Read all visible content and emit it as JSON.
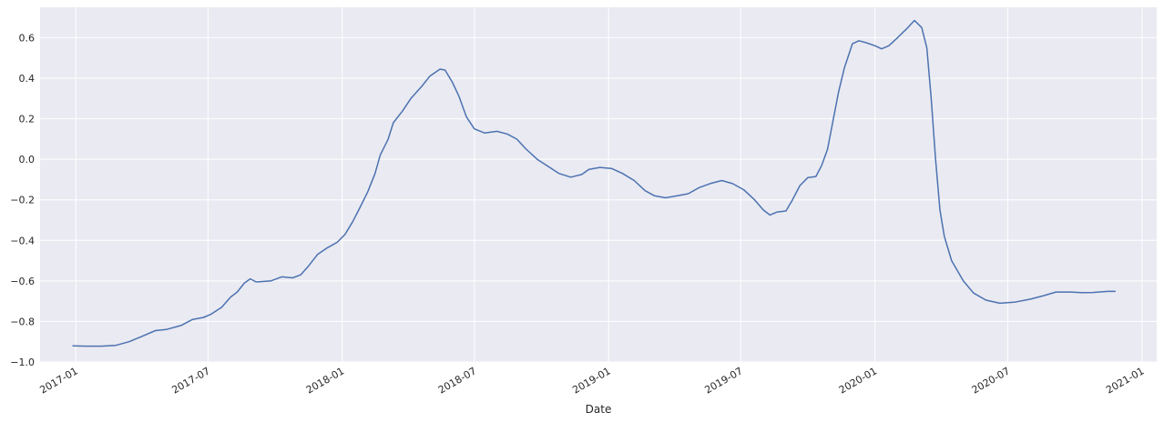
{
  "chart_data": {
    "type": "line",
    "title": "",
    "xlabel": "Date",
    "ylabel": "",
    "xlim": [
      "2016-11-13",
      "2021-01-21"
    ],
    "ylim": [
      -1.0,
      0.75
    ],
    "grid": true,
    "legend": "none",
    "background_color": "#eaeaf2",
    "grid_color": "#ffffff",
    "line_color": "#4c72b0",
    "y_ticks": [
      -1.0,
      -0.8,
      -0.6,
      -0.4,
      -0.2,
      0.0,
      0.2,
      0.4,
      0.6
    ],
    "y_tick_labels": [
      "−1.0",
      "−0.8",
      "−0.6",
      "−0.4",
      "−0.2",
      "0.0",
      "0.2",
      "0.4",
      "0.6"
    ],
    "x_ticks": [
      "2017-01-01",
      "2017-07-01",
      "2018-01-01",
      "2018-07-01",
      "2019-01-01",
      "2019-07-01",
      "2020-01-01",
      "2020-07-01",
      "2021-01-01"
    ],
    "x_tick_labels": [
      "2017-01",
      "2017-07",
      "2018-01",
      "2018-07",
      "2019-01",
      "2019-07",
      "2020-01",
      "2020-07",
      "2021-01"
    ],
    "series": [
      {
        "points": [
          [
            "2016-12-28",
            -0.92
          ],
          [
            "2017-01-15",
            -0.922
          ],
          [
            "2017-02-05",
            -0.922
          ],
          [
            "2017-02-25",
            -0.918
          ],
          [
            "2017-03-15",
            -0.9
          ],
          [
            "2017-04-01",
            -0.875
          ],
          [
            "2017-04-20",
            -0.845
          ],
          [
            "2017-05-05",
            -0.84
          ],
          [
            "2017-05-25",
            -0.82
          ],
          [
            "2017-06-10",
            -0.79
          ],
          [
            "2017-06-25",
            -0.78
          ],
          [
            "2017-07-05",
            -0.765
          ],
          [
            "2017-07-20",
            -0.73
          ],
          [
            "2017-08-01",
            -0.68
          ],
          [
            "2017-08-10",
            -0.655
          ],
          [
            "2017-08-20",
            -0.61
          ],
          [
            "2017-08-28",
            -0.59
          ],
          [
            "2017-09-05",
            -0.605
          ],
          [
            "2017-09-25",
            -0.6
          ],
          [
            "2017-10-10",
            -0.58
          ],
          [
            "2017-10-25",
            -0.585
          ],
          [
            "2017-11-05",
            -0.57
          ],
          [
            "2017-11-15",
            -0.53
          ],
          [
            "2017-11-28",
            -0.47
          ],
          [
            "2017-12-10",
            -0.44
          ],
          [
            "2017-12-25",
            -0.41
          ],
          [
            "2018-01-05",
            -0.37
          ],
          [
            "2018-01-15",
            -0.31
          ],
          [
            "2018-01-25",
            -0.24
          ],
          [
            "2018-02-05",
            -0.16
          ],
          [
            "2018-02-15",
            -0.07
          ],
          [
            "2018-02-22",
            0.02
          ],
          [
            "2018-03-05",
            0.1
          ],
          [
            "2018-03-12",
            0.18
          ],
          [
            "2018-03-25",
            0.24
          ],
          [
            "2018-04-05",
            0.3
          ],
          [
            "2018-04-20",
            0.36
          ],
          [
            "2018-05-01",
            0.41
          ],
          [
            "2018-05-15",
            0.445
          ],
          [
            "2018-05-22",
            0.44
          ],
          [
            "2018-06-01",
            0.38
          ],
          [
            "2018-06-10",
            0.31
          ],
          [
            "2018-06-20",
            0.21
          ],
          [
            "2018-07-01",
            0.15
          ],
          [
            "2018-07-15",
            0.13
          ],
          [
            "2018-08-01",
            0.138
          ],
          [
            "2018-08-15",
            0.125
          ],
          [
            "2018-08-28",
            0.1
          ],
          [
            "2018-09-10",
            0.05
          ],
          [
            "2018-09-25",
            0.0
          ],
          [
            "2018-10-10",
            -0.035
          ],
          [
            "2018-10-25",
            -0.07
          ],
          [
            "2018-11-10",
            -0.088
          ],
          [
            "2018-11-25",
            -0.075
          ],
          [
            "2018-12-05",
            -0.05
          ],
          [
            "2018-12-20",
            -0.04
          ],
          [
            "2019-01-05",
            -0.045
          ],
          [
            "2019-01-20",
            -0.07
          ],
          [
            "2019-02-05",
            -0.105
          ],
          [
            "2019-02-20",
            -0.155
          ],
          [
            "2019-03-05",
            -0.18
          ],
          [
            "2019-03-20",
            -0.19
          ],
          [
            "2019-04-05",
            -0.18
          ],
          [
            "2019-04-20",
            -0.17
          ],
          [
            "2019-05-05",
            -0.14
          ],
          [
            "2019-05-20",
            -0.12
          ],
          [
            "2019-06-05",
            -0.105
          ],
          [
            "2019-06-20",
            -0.12
          ],
          [
            "2019-07-05",
            -0.15
          ],
          [
            "2019-07-20",
            -0.2
          ],
          [
            "2019-08-01",
            -0.25
          ],
          [
            "2019-08-10",
            -0.275
          ],
          [
            "2019-08-20",
            -0.26
          ],
          [
            "2019-09-01",
            -0.255
          ],
          [
            "2019-09-10",
            -0.2
          ],
          [
            "2019-09-20",
            -0.13
          ],
          [
            "2019-10-01",
            -0.09
          ],
          [
            "2019-10-12",
            -0.085
          ],
          [
            "2019-10-20",
            -0.03
          ],
          [
            "2019-10-28",
            0.05
          ],
          [
            "2019-11-05",
            0.2
          ],
          [
            "2019-11-12",
            0.33
          ],
          [
            "2019-11-20",
            0.45
          ],
          [
            "2019-12-01",
            0.57
          ],
          [
            "2019-12-10",
            0.585
          ],
          [
            "2019-12-20",
            0.575
          ],
          [
            "2020-01-01",
            0.56
          ],
          [
            "2020-01-10",
            0.545
          ],
          [
            "2020-01-20",
            0.56
          ],
          [
            "2020-02-01",
            0.6
          ],
          [
            "2020-02-15",
            0.65
          ],
          [
            "2020-02-24",
            0.685
          ],
          [
            "2020-03-05",
            0.65
          ],
          [
            "2020-03-12",
            0.55
          ],
          [
            "2020-03-18",
            0.3
          ],
          [
            "2020-03-24",
            0.0
          ],
          [
            "2020-03-30",
            -0.25
          ],
          [
            "2020-04-05",
            -0.38
          ],
          [
            "2020-04-15",
            -0.5
          ],
          [
            "2020-05-01",
            -0.6
          ],
          [
            "2020-05-15",
            -0.66
          ],
          [
            "2020-06-01",
            -0.695
          ],
          [
            "2020-06-20",
            -0.71
          ],
          [
            "2020-07-10",
            -0.705
          ],
          [
            "2020-08-01",
            -0.69
          ],
          [
            "2020-08-20",
            -0.672
          ],
          [
            "2020-09-05",
            -0.655
          ],
          [
            "2020-09-25",
            -0.655
          ],
          [
            "2020-10-10",
            -0.658
          ],
          [
            "2020-10-25",
            -0.657
          ],
          [
            "2020-11-15",
            -0.652
          ],
          [
            "2020-11-25",
            -0.652
          ]
        ]
      }
    ]
  }
}
